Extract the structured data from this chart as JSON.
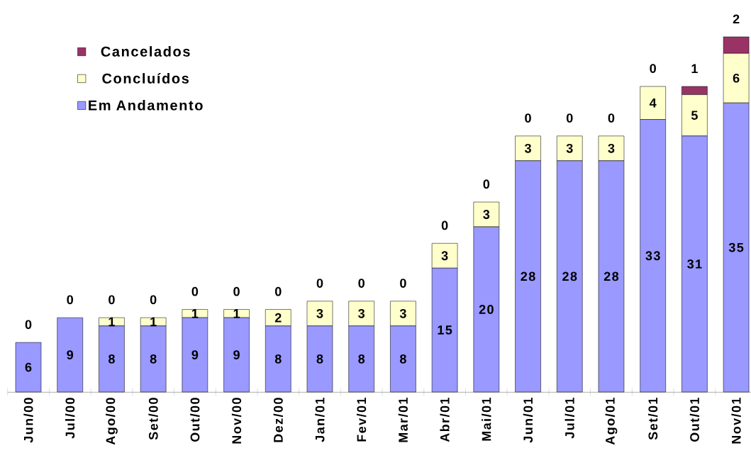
{
  "chart_data": {
    "type": "bar",
    "stacked": true,
    "categories": [
      "Jun/00",
      "Jul/00",
      "Ago/00",
      "Set/00",
      "Out/00",
      "Nov/00",
      "Dez/00",
      "Jan/01",
      "Fev/01",
      "Mar/01",
      "Abr/01",
      "Mai/01",
      "Jun/01",
      "Jul/01",
      "Ago/01",
      "Set/01",
      "Out/01",
      "Nov/01"
    ],
    "series": [
      {
        "name": "Em Andamento",
        "color": "#9999ff",
        "values": [
          6,
          9,
          8,
          8,
          9,
          9,
          8,
          8,
          8,
          8,
          15,
          20,
          28,
          28,
          28,
          33,
          31,
          35
        ],
        "value_labels": [
          "6",
          "9",
          "8",
          "8",
          "9",
          "9",
          "8",
          "8",
          "8",
          "8",
          "15",
          "20",
          "28",
          "28",
          "28",
          "33",
          "31",
          "35"
        ]
      },
      {
        "name": "Concluídos",
        "color": "#ffffcc",
        "values": [
          0,
          0,
          1,
          1,
          1,
          1,
          2,
          3,
          3,
          3,
          3,
          3,
          3,
          3,
          3,
          4,
          5,
          6
        ],
        "value_labels": [
          null,
          null,
          "1",
          "1",
          "1",
          "1",
          "2",
          "3",
          "3",
          "3",
          "3",
          "3",
          "3",
          "3",
          "3",
          "4",
          "5",
          "6"
        ]
      },
      {
        "name": "Cancelados",
        "color": "#993366",
        "values": [
          0,
          0,
          0,
          0,
          0,
          0,
          0,
          0,
          0,
          0,
          0,
          0,
          0,
          0,
          0,
          0,
          1,
          2
        ],
        "value_labels": [
          "0",
          "0",
          "0",
          "0",
          "0",
          "0",
          "0",
          "0",
          "0",
          "0",
          "0",
          "0",
          "0",
          "0",
          "0",
          "0",
          "1",
          "2"
        ]
      }
    ],
    "legend": "top left"
  }
}
